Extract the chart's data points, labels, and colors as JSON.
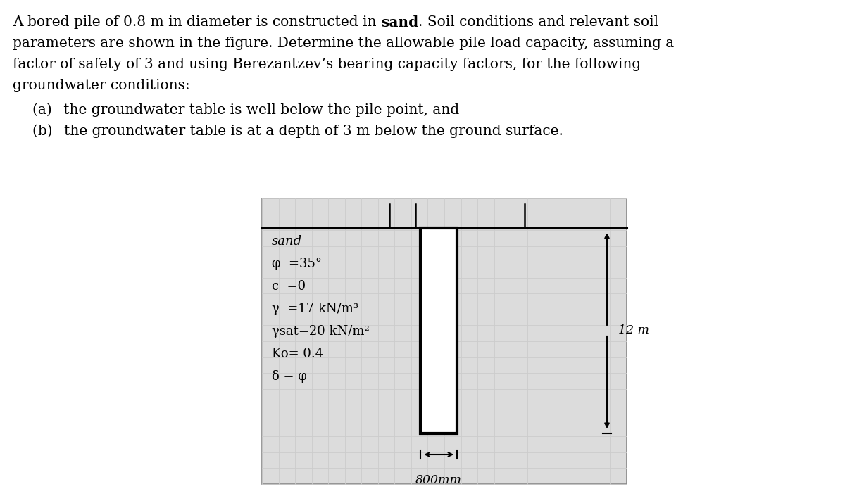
{
  "line1_pre": "A bored pile of 0.8 m in diameter is constructed in ",
  "line1_bold": "sand",
  "line1_post": ". Soil conditions and relevant soil",
  "line2": "parameters are shown in the figure. Determine the allowable pile load capacity, assuming a",
  "line3": "factor of safety of 3 and using Berezantzev’s bearing capacity factors, for the following",
  "line4": "groundwater conditions:",
  "line5": "(a)  the groundwater table is well below the pile point, and",
  "line6": "(b)  the groundwater table is at a depth of 3 m below the ground surface.",
  "soil_lines": [
    "sand",
    "φ  =35°",
    "c  =0",
    "γ  =17 kN/m³",
    "γsat=20 kN/m²",
    "Ko= 0.4",
    "δ = φ"
  ],
  "depth_label": "12 m",
  "width_label": "800mm",
  "bg_color": "#ffffff",
  "grid_color": "#cccccc",
  "grid_bg": "#dcdcdc",
  "pile_fill": "#ffffff",
  "pile_border": "#000000",
  "text_fontsize": 14.5,
  "soil_fontsize": 13.0,
  "dim_fontsize": 12.5
}
